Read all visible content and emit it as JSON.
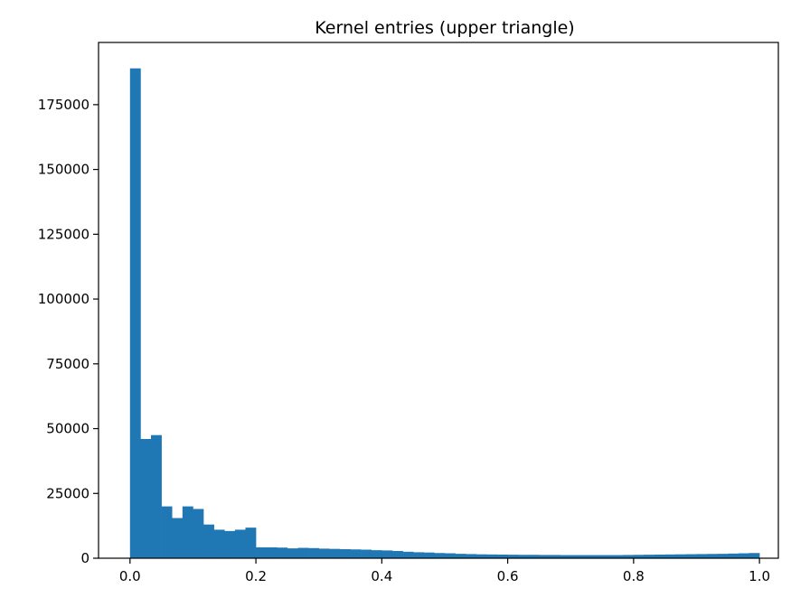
{
  "chart_data": {
    "type": "bar",
    "subtype": "histogram",
    "title": "Kernel entries (upper triangle)",
    "xlabel": "",
    "ylabel": "",
    "xlim": [
      -0.05,
      1.03
    ],
    "ylim": [
      0,
      199000
    ],
    "bar_color": "#1f77b4",
    "grid": false,
    "legend": "none",
    "x_ticks": [
      0.0,
      0.2,
      0.4,
      0.6,
      0.8,
      1.0
    ],
    "x_tick_labels": [
      "0.0",
      "0.2",
      "0.4",
      "0.6",
      "0.8",
      "1.0"
    ],
    "y_ticks": [
      0,
      25000,
      50000,
      75000,
      100000,
      125000,
      150000,
      175000
    ],
    "y_tick_labels": [
      "0",
      "25000",
      "50000",
      "75000",
      "100000",
      "125000",
      "150000",
      "175000"
    ],
    "bins": {
      "start": 0.0,
      "end": 1.0,
      "count": 60,
      "values": [
        189000,
        46000,
        47500,
        20000,
        15500,
        20000,
        19000,
        13000,
        11000,
        10500,
        11000,
        11800,
        4200,
        4200,
        4100,
        3800,
        4000,
        3900,
        3700,
        3600,
        3500,
        3400,
        3300,
        3100,
        3000,
        2800,
        2500,
        2300,
        2200,
        2000,
        1900,
        1700,
        1600,
        1500,
        1450,
        1400,
        1350,
        1300,
        1300,
        1250,
        1250,
        1200,
        1200,
        1200,
        1200,
        1200,
        1200,
        1250,
        1300,
        1350,
        1400,
        1450,
        1500,
        1550,
        1600,
        1650,
        1700,
        1800,
        1900,
        2000
      ]
    }
  }
}
